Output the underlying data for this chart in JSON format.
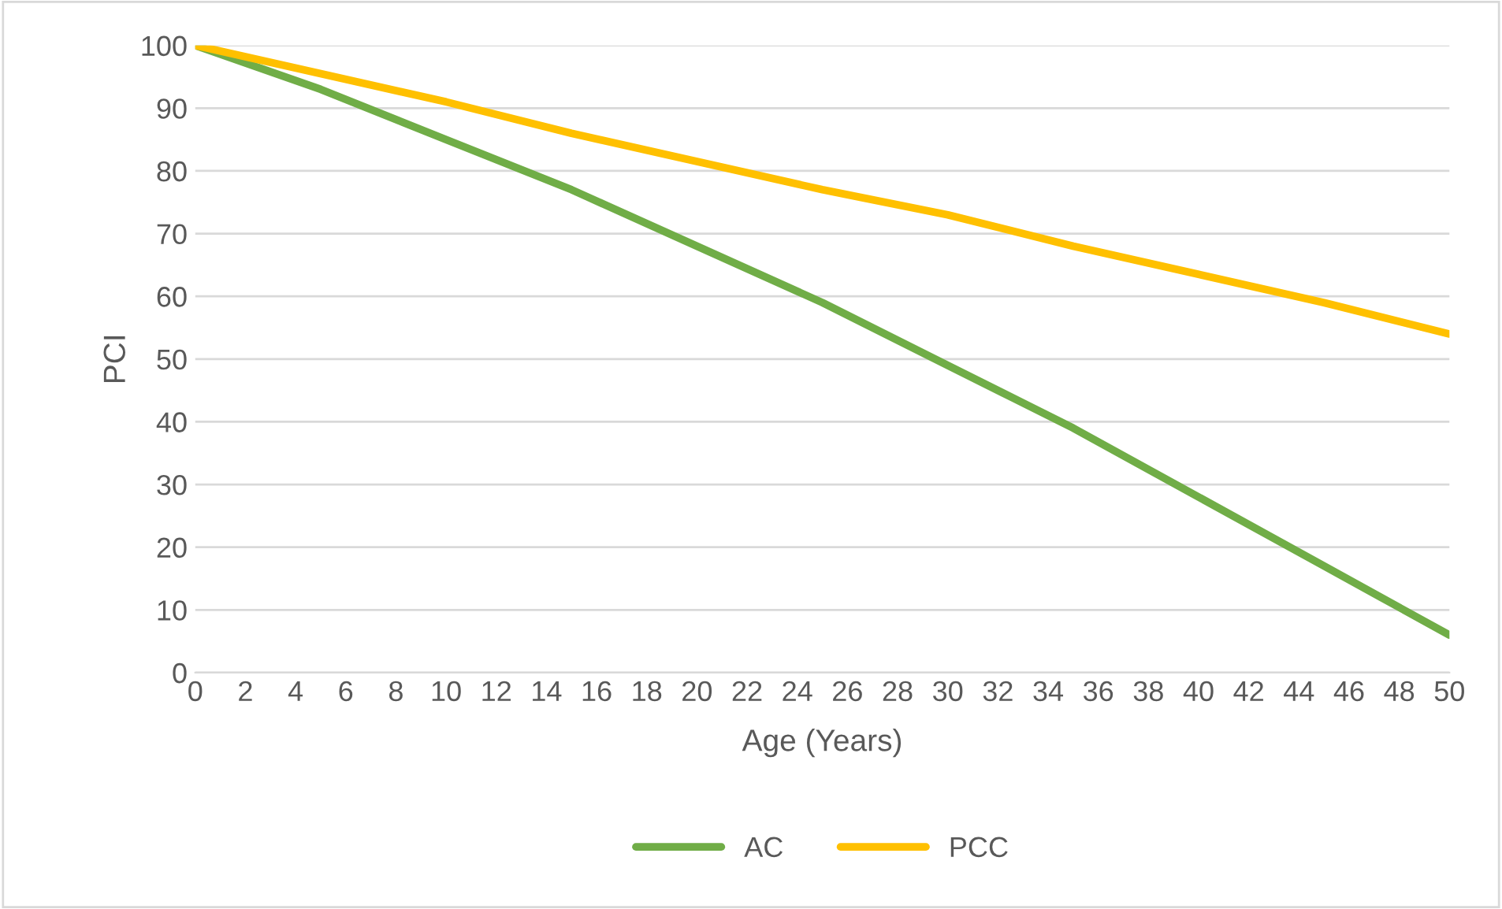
{
  "chart_data": {
    "type": "line",
    "xlabel": "Age (Years)",
    "ylabel": "PCI",
    "x": [
      0,
      5,
      10,
      15,
      20,
      25,
      30,
      35,
      40,
      45,
      50
    ],
    "series": [
      {
        "name": "AC",
        "color": "#70ad47",
        "values": [
          100,
          93,
          85,
          77,
          68,
          59,
          49,
          39,
          28,
          17,
          6
        ]
      },
      {
        "name": "PCC",
        "color": "#ffc000",
        "values": [
          100,
          95.5,
          91,
          86,
          81.5,
          77,
          73,
          68,
          63.5,
          59,
          54
        ]
      }
    ],
    "xlim": [
      0,
      50
    ],
    "xticks": [
      0,
      2,
      4,
      6,
      8,
      10,
      12,
      14,
      16,
      18,
      20,
      22,
      24,
      26,
      28,
      30,
      32,
      34,
      36,
      38,
      40,
      42,
      44,
      46,
      48,
      50
    ],
    "ylim": [
      0,
      100
    ],
    "yticks": [
      0,
      10,
      20,
      30,
      40,
      50,
      60,
      70,
      80,
      90,
      100
    ],
    "grid": "y",
    "legend": "bottom",
    "marker": "none",
    "line_style": "solid"
  }
}
